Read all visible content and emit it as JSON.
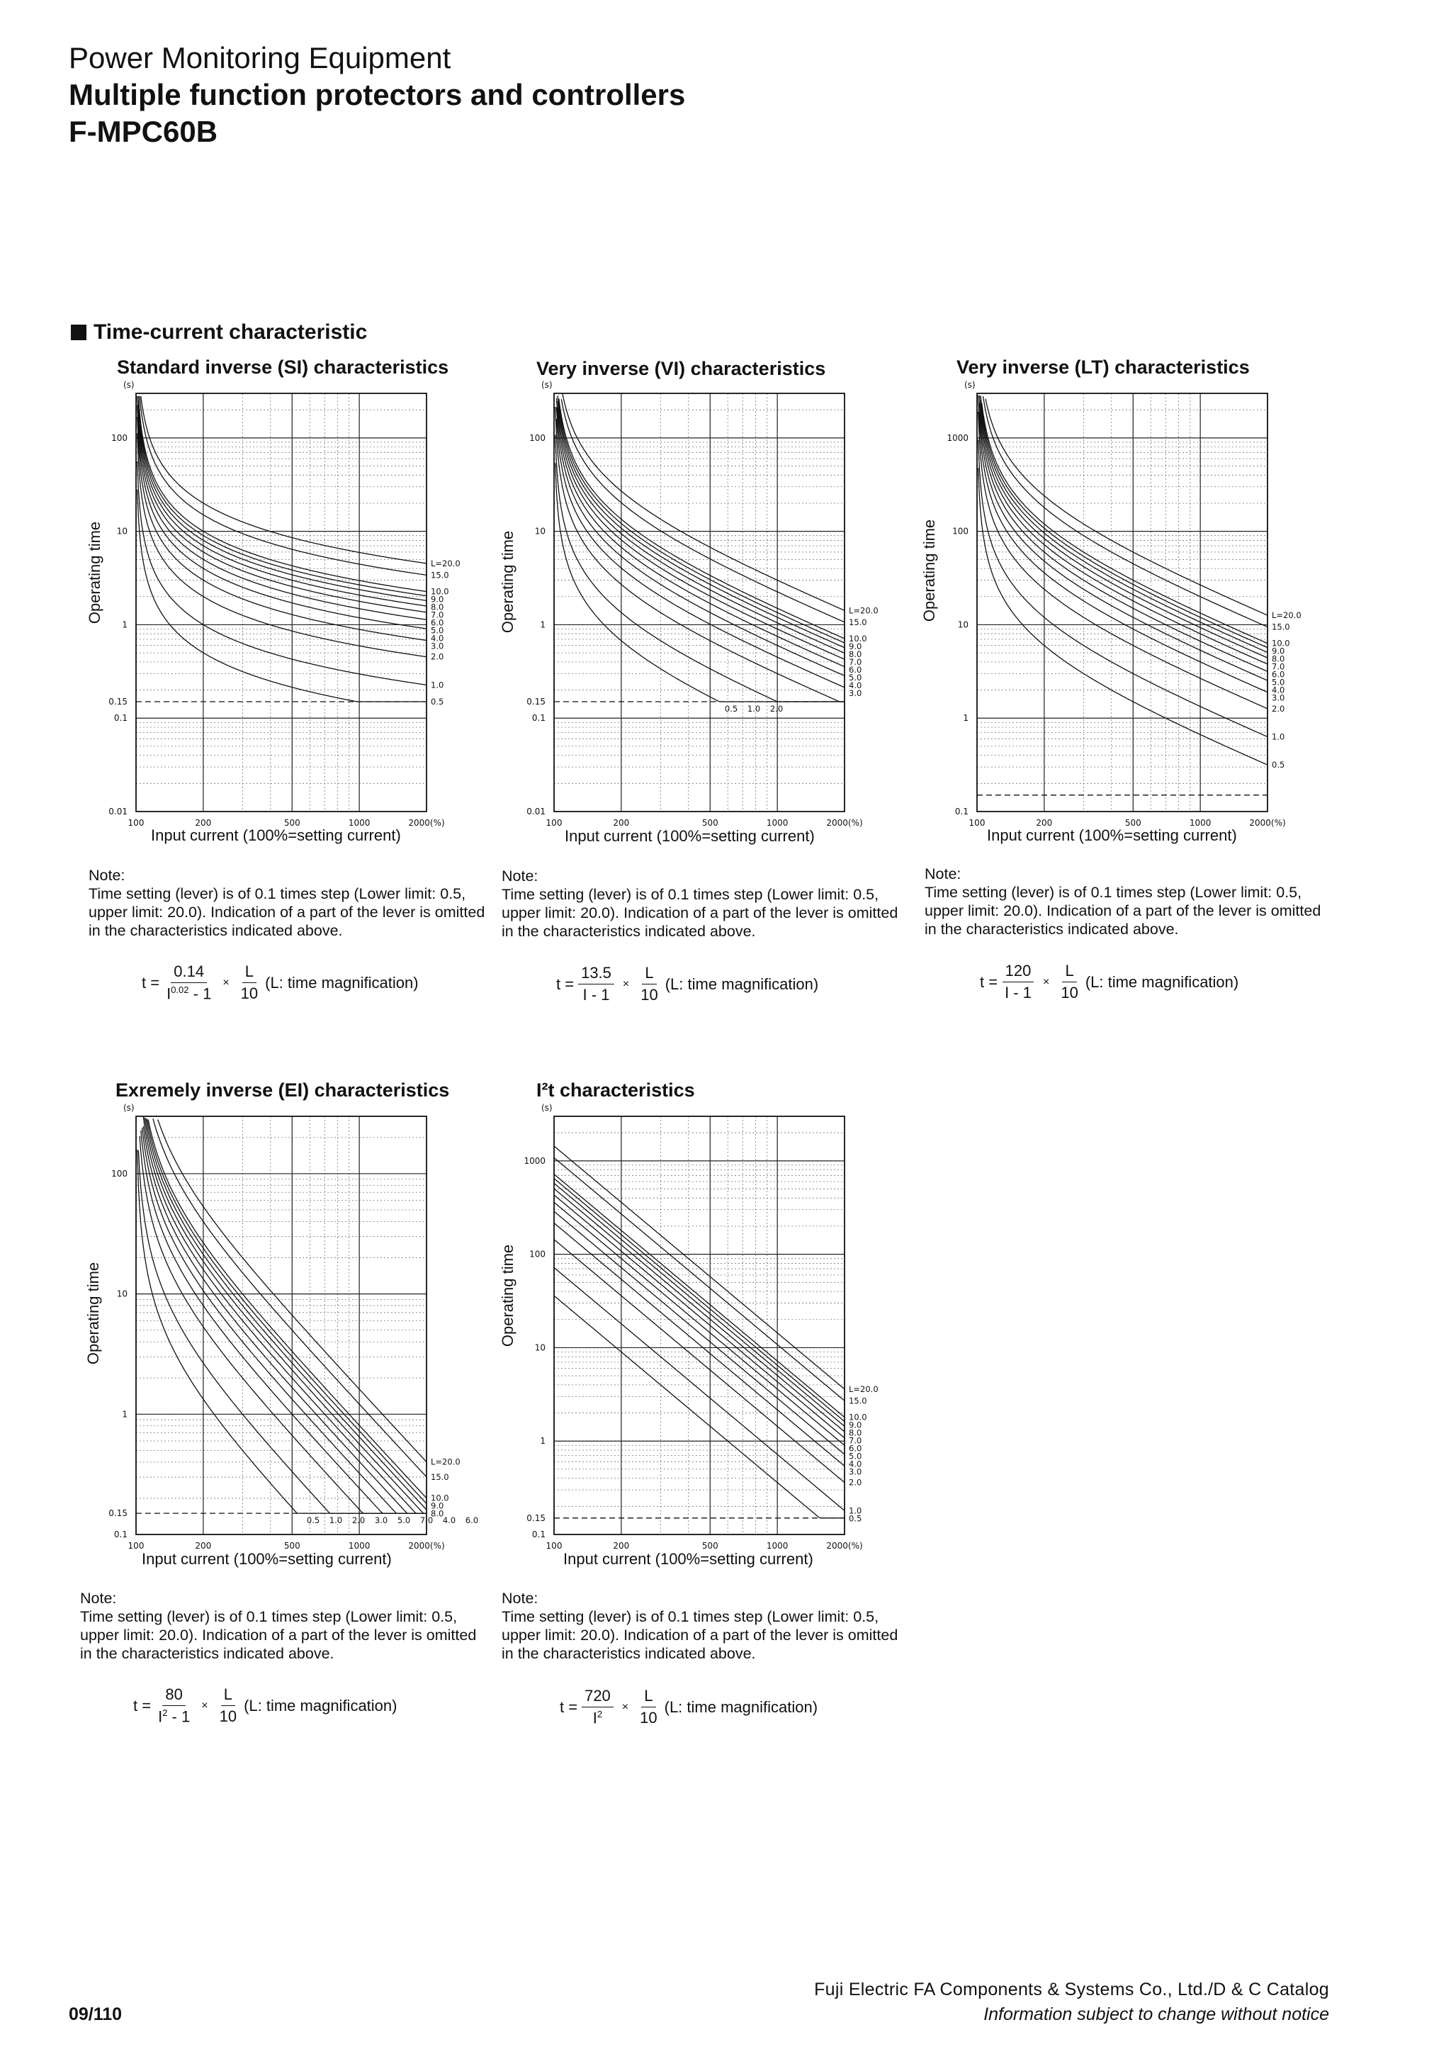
{
  "header": {
    "category": "Power Monitoring Equipment",
    "subtitle": "Multiple function protectors and controllers",
    "model": "F-MPC60B"
  },
  "section_title": "Time-current characteristic",
  "common": {
    "y_axis_label": "Operating time",
    "x_axis_label": "Input current (100%=setting current)",
    "unit_s": "(s)",
    "x_ticks": [
      "100",
      "200",
      "500",
      "1000",
      "2000(%)"
    ],
    "note_heading": "Note:",
    "note_text": "Time setting (lever) is of 0.1 times step (Lower limit: 0.5, upper limit: 20.0). Indication of a part of the lever is omitted in the characteristics indicated above.",
    "times_sign": "×",
    "t_equals": "t =",
    "lever_num": "L",
    "lever_den": "10",
    "magnification": "(L: time magnification)"
  },
  "chart_data": [
    {
      "type": "line",
      "title": "Standard inverse (SI) characteristics",
      "xlabel": "Input current (100%=setting current)",
      "ylabel": "Operating time",
      "xscale": "log",
      "yscale": "log",
      "xlim": [
        100,
        2000
      ],
      "ylim": [
        0.01,
        300
      ],
      "y_ticks": [
        "100",
        "10",
        "1",
        "0.15",
        "0.1",
        "0.01"
      ],
      "formula": {
        "k": 0.14,
        "alpha": 0.02,
        "numerator": "0.14",
        "denominator": "I",
        "exponent": "0.02",
        "minus": " - 1"
      },
      "levers": [
        20,
        15,
        10,
        9,
        8,
        7,
        6,
        5,
        4,
        3,
        2,
        1,
        0.5
      ],
      "lever_labels": [
        "L=20.0",
        "15.0",
        "10.0",
        "9.0",
        "8.0",
        "7.0",
        "6.0",
        "5.0",
        "4.0",
        "3.0",
        "2.0",
        "1.0",
        "0.5"
      ],
      "series_description": "t = 0.14/(I^0.02 - 1) × L/10 for each lever value"
    },
    {
      "type": "line",
      "title": "Very inverse (VI) characteristics",
      "xlabel": "Input current (100%=setting current)",
      "ylabel": "Operating time",
      "xscale": "log",
      "yscale": "log",
      "xlim": [
        100,
        2000
      ],
      "ylim": [
        0.01,
        300
      ],
      "y_ticks": [
        "100",
        "10",
        "1",
        "0.15",
        "0.1",
        "0.01"
      ],
      "formula": {
        "k": 13.5,
        "alpha": 1,
        "numerator": "13.5",
        "denominator": "I - 1"
      },
      "levers": [
        20,
        15,
        10,
        9,
        8,
        7,
        6,
        5,
        4,
        3,
        2,
        1,
        0.5
      ],
      "lever_labels": [
        "L=20.0",
        "15.0",
        "10.0",
        "9.0",
        "8.0",
        "7.0",
        "6.0",
        "5.0",
        "4.0",
        "3.0"
      ],
      "inline_labels": [
        "0.5",
        "1.0",
        "2.0"
      ],
      "series_description": "t = 13.5/(I - 1) × L/10 for each lever value"
    },
    {
      "type": "line",
      "title": "Very inverse (LT) characteristics",
      "xlabel": "Input current (100%=setting current)",
      "ylabel": "Operating time",
      "xscale": "log",
      "yscale": "log",
      "xlim": [
        100,
        2000
      ],
      "ylim": [
        0.1,
        3000
      ],
      "y_ticks": [
        "1000",
        "100",
        "10",
        "1",
        "0.1"
      ],
      "formula": {
        "k": 120,
        "alpha": 1,
        "numerator": "120",
        "denominator": "I - 1"
      },
      "levers": [
        20,
        15,
        10,
        9,
        8,
        7,
        6,
        5,
        4,
        3,
        2,
        1,
        0.5
      ],
      "lever_labels": [
        "L=20.0",
        "15.0",
        "10.0",
        "9.0",
        "8.0",
        "7.0",
        "6.0",
        "5.0",
        "4.0",
        "3.0",
        "2.0",
        "1.0",
        "0.5"
      ],
      "series_description": "t = 120/(I - 1) × L/10 for each lever value"
    },
    {
      "type": "line",
      "title": "Exremely inverse (EI) characteristics",
      "xlabel": "Input current (100%=setting current)",
      "ylabel": "Operating time",
      "xscale": "log",
      "yscale": "log",
      "xlim": [
        100,
        2000
      ],
      "ylim": [
        0.1,
        300
      ],
      "y_ticks": [
        "100",
        "10",
        "1",
        "0.15",
        "0.1"
      ],
      "formula": {
        "k": 80,
        "alpha": 2,
        "numerator": "80",
        "denominator": "I",
        "exponent": "2",
        "minus": " - 1"
      },
      "levers": [
        20,
        15,
        10,
        9,
        8,
        7,
        6,
        5,
        4,
        3,
        2,
        1,
        0.5
      ],
      "lever_labels": [
        "L=20.0",
        "15.0",
        "10.0",
        "9.0",
        "8.0"
      ],
      "inline_labels": [
        "0.5",
        "1.0",
        "2.0",
        "3.0",
        "5.0",
        "7.0",
        "4.0",
        "6.0"
      ],
      "series_description": "t = 80/(I^2 - 1) × L/10 for each lever value"
    },
    {
      "type": "line",
      "title": "I²t  characteristics",
      "xlabel": "Input current (100%=setting current)",
      "ylabel": "Operating time",
      "xscale": "log",
      "yscale": "log",
      "xlim": [
        100,
        2000
      ],
      "ylim": [
        0.1,
        3000
      ],
      "y_ticks": [
        "1000",
        "100",
        "10",
        "1",
        "0.15",
        "0.1"
      ],
      "formula": {
        "k": 720,
        "alpha": 2,
        "numerator": "720",
        "denominator": "I",
        "exponent": "2",
        "minus": ""
      },
      "levers": [
        20,
        15,
        10,
        9,
        8,
        7,
        6,
        5,
        4,
        3,
        2,
        1,
        0.5
      ],
      "lever_labels": [
        "L=20.0",
        "15.0",
        "10.0",
        "9.0",
        "8.0",
        "7.0",
        "6.0",
        "5.0",
        "4.0",
        "3.0",
        "2.0",
        "1.0",
        "0.5"
      ],
      "series_description": "t = 720/I^2 × L/10 for each lever value"
    }
  ],
  "footer": {
    "page": "09/110",
    "company": "Fuji Electric FA Components & Systems Co., Ltd./D & C Catalog",
    "disclaimer": "Information subject to change without notice"
  }
}
